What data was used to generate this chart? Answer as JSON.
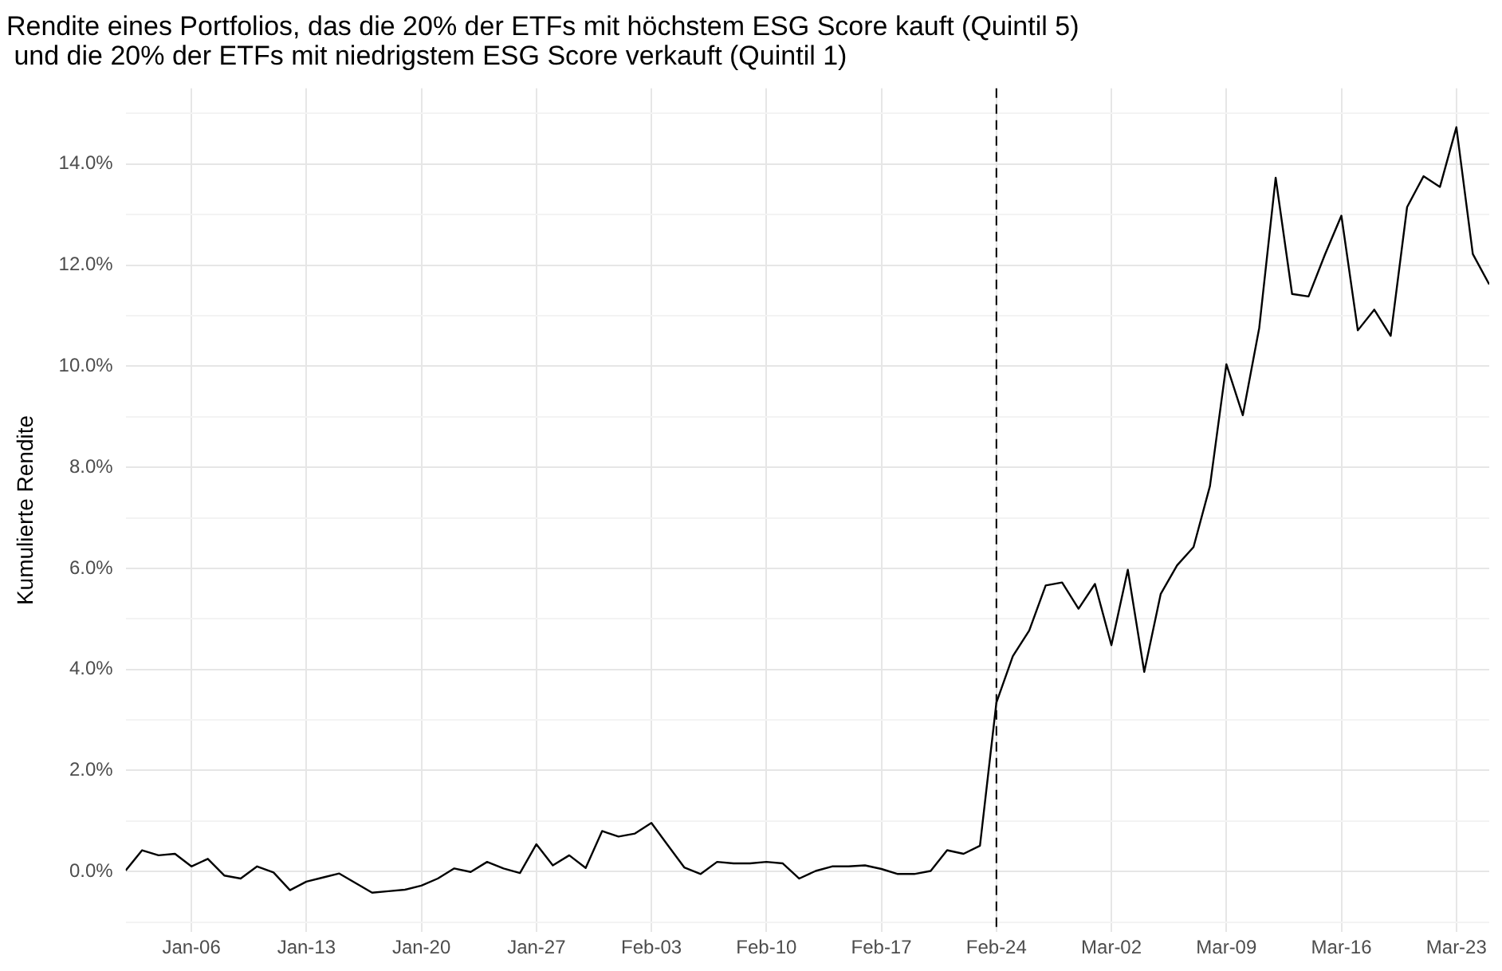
{
  "chart_data": {
    "type": "line",
    "title": "Rendite eines Portfolios, das die 20% der ETFs mit höchstem ESG Score kauft (Quintil 5)\n und die 20% der ETFs mit niedrigstem ESG Score verkauft (Quintil 1)",
    "ylabel": "Kumulierte Rendite",
    "x": [
      "--01-02",
      "--01-03",
      "--01-04",
      "--01-05",
      "--01-06",
      "--01-07",
      "--01-08",
      "--01-09",
      "--01-10",
      "--01-11",
      "--01-12",
      "--01-13",
      "--01-14",
      "--01-15",
      "--01-16",
      "--01-17",
      "--01-18",
      "--01-19",
      "--01-20",
      "--01-21",
      "--01-22",
      "--01-23",
      "--01-24",
      "--01-25",
      "--01-26",
      "--01-27",
      "--01-28",
      "--01-29",
      "--01-30",
      "--01-31",
      "--02-01",
      "--02-02",
      "--02-03",
      "--02-04",
      "--02-05",
      "--02-06",
      "--02-07",
      "--02-08",
      "--02-09",
      "--02-10",
      "--02-11",
      "--02-12",
      "--02-13",
      "--02-14",
      "--02-15",
      "--02-16",
      "--02-17",
      "--02-18",
      "--02-19",
      "--02-20",
      "--02-21",
      "--02-22",
      "--02-23",
      "--02-24",
      "--02-25",
      "--02-26",
      "--02-27",
      "--02-28",
      "--02-29",
      "--03-01",
      "--03-02",
      "--03-03",
      "--03-04",
      "--03-05",
      "--03-06",
      "--03-07",
      "--03-08",
      "--03-09",
      "--03-10",
      "--03-11",
      "--03-12",
      "--03-13",
      "--03-14",
      "--03-15",
      "--03-16",
      "--03-17",
      "--03-18",
      "--03-19",
      "--03-20",
      "--03-21",
      "--03-22",
      "--03-23",
      "--03-24",
      "--03-25"
    ],
    "series": [
      {
        "color": "#000000",
        "values": [
          0.02,
          0.42,
          0.32,
          0.35,
          0.1,
          0.25,
          -0.08,
          -0.14,
          0.1,
          -0.02,
          -0.37,
          -0.2,
          -0.12,
          -0.04,
          -0.23,
          -0.42,
          -0.39,
          -0.36,
          -0.28,
          -0.14,
          0.06,
          -0.01,
          0.19,
          0.06,
          -0.03,
          0.54,
          0.12,
          0.32,
          0.07,
          0.8,
          0.69,
          0.75,
          0.96,
          0.52,
          0.08,
          -0.05,
          0.19,
          0.16,
          0.16,
          0.19,
          0.16,
          -0.14,
          0.01,
          0.1,
          0.1,
          0.12,
          0.05,
          -0.05,
          -0.05,
          0.01,
          0.42,
          0.35,
          0.51,
          3.34,
          4.26,
          4.77,
          5.66,
          5.72,
          5.2,
          5.69,
          4.48,
          5.97,
          3.95,
          5.49,
          6.06,
          6.42,
          7.63,
          10.04,
          9.03,
          10.76,
          13.73,
          11.43,
          11.38,
          12.21,
          12.98,
          10.71,
          11.12,
          10.6,
          13.15,
          13.76,
          13.55,
          14.73,
          12.22,
          11.62
        ]
      }
    ],
    "xlim": [
      "--01-02",
      "--03-25"
    ],
    "xticks": [
      {
        "value": "--01-06",
        "label": "Jan-06"
      },
      {
        "value": "--01-13",
        "label": "Jan-13"
      },
      {
        "value": "--01-20",
        "label": "Jan-20"
      },
      {
        "value": "--01-27",
        "label": "Jan-27"
      },
      {
        "value": "--02-03",
        "label": "Feb-03"
      },
      {
        "value": "--02-10",
        "label": "Feb-10"
      },
      {
        "value": "--02-17",
        "label": "Feb-17"
      },
      {
        "value": "--02-24",
        "label": "Feb-24"
      },
      {
        "value": "--03-02",
        "label": "Mar-02"
      },
      {
        "value": "--03-09",
        "label": "Mar-09"
      },
      {
        "value": "--03-16",
        "label": "Mar-16"
      },
      {
        "value": "--03-23",
        "label": "Mar-23"
      }
    ],
    "ylim": [
      -1.2,
      15.5
    ],
    "yticks": [
      {
        "value": -1,
        "label": null
      },
      {
        "value": 0,
        "label": "0.0%"
      },
      {
        "value": 1,
        "label": null
      },
      {
        "value": 2,
        "label": "2.0%"
      },
      {
        "value": 3,
        "label": null
      },
      {
        "value": 4,
        "label": "4.0%"
      },
      {
        "value": 5,
        "label": null
      },
      {
        "value": 6,
        "label": "6.0%"
      },
      {
        "value": 7,
        "label": null
      },
      {
        "value": 8,
        "label": "8.0%"
      },
      {
        "value": 9,
        "label": null
      },
      {
        "value": 10,
        "label": "10.0%"
      },
      {
        "value": 11,
        "label": null
      },
      {
        "value": 12,
        "label": "12.0%"
      },
      {
        "value": 13,
        "label": null
      },
      {
        "value": 14,
        "label": "14.0%"
      },
      {
        "value": 15,
        "label": null
      }
    ],
    "ref_lines": [
      {
        "axis": "x",
        "value": "--02-24",
        "color": "#000000",
        "line_style": "dashed"
      }
    ],
    "grid": true,
    "legend": false,
    "marker": "none",
    "line_style": "solid"
  }
}
